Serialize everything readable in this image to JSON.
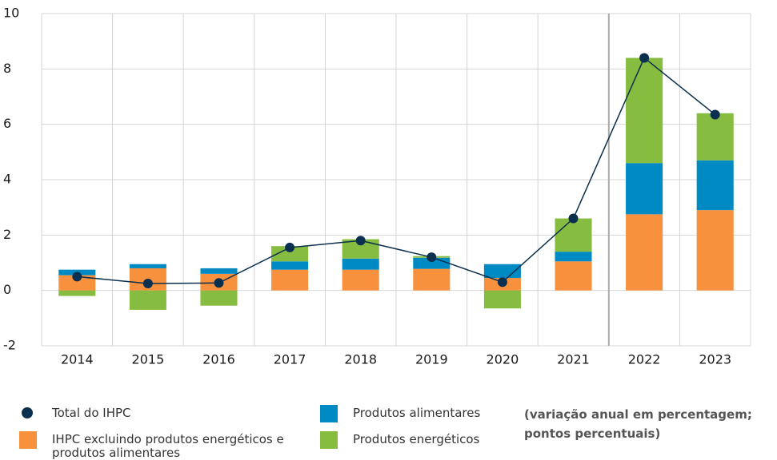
{
  "chart_data": {
    "type": "bar",
    "stacked": true,
    "categories": [
      "2014",
      "2015",
      "2016",
      "2017",
      "2018",
      "2019",
      "2020",
      "2021",
      "2022",
      "2023"
    ],
    "series": [
      {
        "name": "Total do IHPC",
        "type": "line",
        "color": "#0b2f4e",
        "values": [
          0.5,
          0.25,
          0.27,
          1.55,
          1.8,
          1.2,
          0.3,
          2.6,
          8.4,
          6.35
        ]
      },
      {
        "name": "IHPC excluindo produtos energéticos e produtos alimentares",
        "color": "#f7913d",
        "values": [
          0.55,
          0.8,
          0.6,
          0.75,
          0.75,
          0.78,
          0.45,
          1.05,
          2.75,
          2.9
        ]
      },
      {
        "name": "Produtos alimentares",
        "color": "#008ac4",
        "values": [
          0.2,
          0.15,
          0.2,
          0.3,
          0.4,
          0.4,
          0.5,
          0.35,
          1.85,
          1.8
        ]
      },
      {
        "name": "Produtos energéticos",
        "color": "#86bc40",
        "values": [
          -0.2,
          -0.7,
          -0.55,
          0.55,
          0.7,
          0.06,
          -0.65,
          1.2,
          3.8,
          1.7
        ]
      }
    ],
    "note": [
      "(variação anual em percentagem;",
      "pontos percentuais)"
    ],
    "ylim": [
      -2,
      10
    ],
    "yticks": [
      {
        "value": -2,
        "label": "-2"
      },
      0,
      2,
      4,
      6,
      8,
      10
    ],
    "grid": true
  }
}
